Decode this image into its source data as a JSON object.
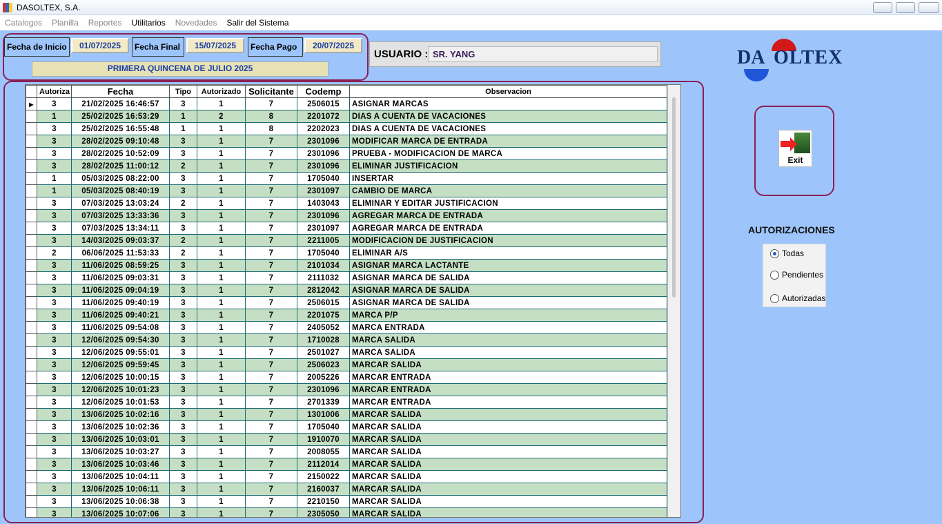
{
  "window": {
    "title": "DASOLTEX, S.A."
  },
  "menu": [
    "Catalogos",
    "Planilla",
    "Reportes",
    "Utilitarios",
    "Novedades",
    "Salir del Sistema"
  ],
  "dates": {
    "start_label": "Fecha de Inicio",
    "start": "01/07/2025",
    "end_label": "Fecha Final",
    "end": "15/07/2025",
    "pay_label": "Fecha Pago",
    "pay": "20/07/2025",
    "period": "PRIMERA QUINCENA DE JULIO 2025"
  },
  "user": {
    "label": "USUARIO :",
    "value": "SR. YANG"
  },
  "logo": {
    "left": "DA",
    "right": "OLTEX"
  },
  "table": {
    "columns": [
      "Autoriza",
      "Fecha",
      "Tipo",
      "Autorizado",
      "Solicitante",
      "Codemp",
      "Observacion"
    ],
    "rows": [
      [
        "3",
        "21/02/2025 16:46:57",
        "3",
        "1",
        "7",
        "2506015",
        "ASIGNAR MARCAS"
      ],
      [
        "1",
        "25/02/2025 16:53:29",
        "1",
        "2",
        "8",
        "2201072",
        "DIAS A CUENTA DE VACACIONES"
      ],
      [
        "3",
        "25/02/2025 16:55:48",
        "1",
        "1",
        "8",
        "2202023",
        "DIAS A CUENTA DE VACACIONES"
      ],
      [
        "3",
        "28/02/2025 09:10:48",
        "3",
        "1",
        "7",
        "2301096",
        "MODIFICAR MARCA DE ENTRADA"
      ],
      [
        "3",
        "28/02/2025 10:52:09",
        "3",
        "1",
        "7",
        "2301096",
        "PRUEBA - MODIFICACION DE MARCA"
      ],
      [
        "3",
        "28/02/2025 11:00:12",
        "2",
        "1",
        "7",
        "2301096",
        "ELIMINAR JUSTIFICACION"
      ],
      [
        "1",
        "05/03/2025 08:22:00",
        "3",
        "1",
        "7",
        "1705040",
        "INSERTAR"
      ],
      [
        "1",
        "05/03/2025 08:40:19",
        "3",
        "1",
        "7",
        "2301097",
        "CAMBIO DE MARCA"
      ],
      [
        "3",
        "07/03/2025 13:03:24",
        "2",
        "1",
        "7",
        "1403043",
        "ELIMINAR Y EDITAR JUSTIFICACION"
      ],
      [
        "3",
        "07/03/2025 13:33:36",
        "3",
        "1",
        "7",
        "2301096",
        "AGREGAR MARCA DE ENTRADA"
      ],
      [
        "3",
        "07/03/2025 13:34:11",
        "3",
        "1",
        "7",
        "2301097",
        "AGREGAR MARCA DE ENTRADA"
      ],
      [
        "3",
        "14/03/2025 09:03:37",
        "2",
        "1",
        "7",
        "2211005",
        "MODIFICACION DE JUSTIFICACION"
      ],
      [
        "2",
        "06/06/2025 11:53:33",
        "2",
        "1",
        "7",
        "1705040",
        "ELIMINAR A/S"
      ],
      [
        "3",
        "11/06/2025 08:59:25",
        "3",
        "1",
        "7",
        "2101034",
        "ASIGNAR MARCA LACTANTE"
      ],
      [
        "3",
        "11/06/2025 09:03:31",
        "3",
        "1",
        "7",
        "2111032",
        "ASIGNAR MARCA DE SALIDA"
      ],
      [
        "3",
        "11/06/2025 09:04:19",
        "3",
        "1",
        "7",
        "2812042",
        "ASIGNAR MARCA DE SALIDA"
      ],
      [
        "3",
        "11/06/2025 09:40:19",
        "3",
        "1",
        "7",
        "2506015",
        "ASIGNAR MARCA DE SALIDA"
      ],
      [
        "3",
        "11/06/2025 09:40:21",
        "3",
        "1",
        "7",
        "2201075",
        "MARCA P/P"
      ],
      [
        "3",
        "11/06/2025 09:54:08",
        "3",
        "1",
        "7",
        "2405052",
        "MARCA ENTRADA"
      ],
      [
        "3",
        "12/06/2025 09:54:30",
        "3",
        "1",
        "7",
        "1710028",
        "MARCA SALIDA"
      ],
      [
        "3",
        "12/06/2025 09:55:01",
        "3",
        "1",
        "7",
        "2501027",
        "MARCA SALIDA"
      ],
      [
        "3",
        "12/06/2025 09:59:45",
        "3",
        "1",
        "7",
        "2506023",
        "MARCAR SALIDA"
      ],
      [
        "3",
        "12/06/2025 10:00:15",
        "3",
        "1",
        "7",
        "2005226",
        "MARCAR ENTRADA"
      ],
      [
        "3",
        "12/06/2025 10:01:23",
        "3",
        "1",
        "7",
        "2301096",
        "MARCAR ENTRADA"
      ],
      [
        "3",
        "12/06/2025 10:01:53",
        "3",
        "1",
        "7",
        "2701339",
        "MARCAR ENTRADA"
      ],
      [
        "3",
        "13/06/2025 10:02:16",
        "3",
        "1",
        "7",
        "1301006",
        "MARCAR SALIDA"
      ],
      [
        "3",
        "13/06/2025 10:02:36",
        "3",
        "1",
        "7",
        "1705040",
        "MARCAR SALIDA"
      ],
      [
        "3",
        "13/06/2025 10:03:01",
        "3",
        "1",
        "7",
        "1910070",
        "MARCAR SALIDA"
      ],
      [
        "3",
        "13/06/2025 10:03:27",
        "3",
        "1",
        "7",
        "2008055",
        "MARCAR SALIDA"
      ],
      [
        "3",
        "13/06/2025 10:03:46",
        "3",
        "1",
        "7",
        "2112014",
        "MARCAR SALIDA"
      ],
      [
        "3",
        "13/06/2025 10:04:11",
        "3",
        "1",
        "7",
        "2150022",
        "MARCAR SALIDA"
      ],
      [
        "3",
        "13/06/2025 10:06:11",
        "3",
        "1",
        "7",
        "2160037",
        "MARCAR SALIDA"
      ],
      [
        "3",
        "13/06/2025 10:06:38",
        "3",
        "1",
        "7",
        "2210150",
        "MARCAR SALIDA"
      ],
      [
        "3",
        "13/06/2025 10:07:06",
        "3",
        "1",
        "7",
        "2305050",
        "MARCAR SALIDA"
      ]
    ]
  },
  "exit": "Exit",
  "filter": {
    "title": "AUTORIZACIONES",
    "options": [
      "Todas",
      "Pendientes",
      "Autorizadas"
    ]
  }
}
